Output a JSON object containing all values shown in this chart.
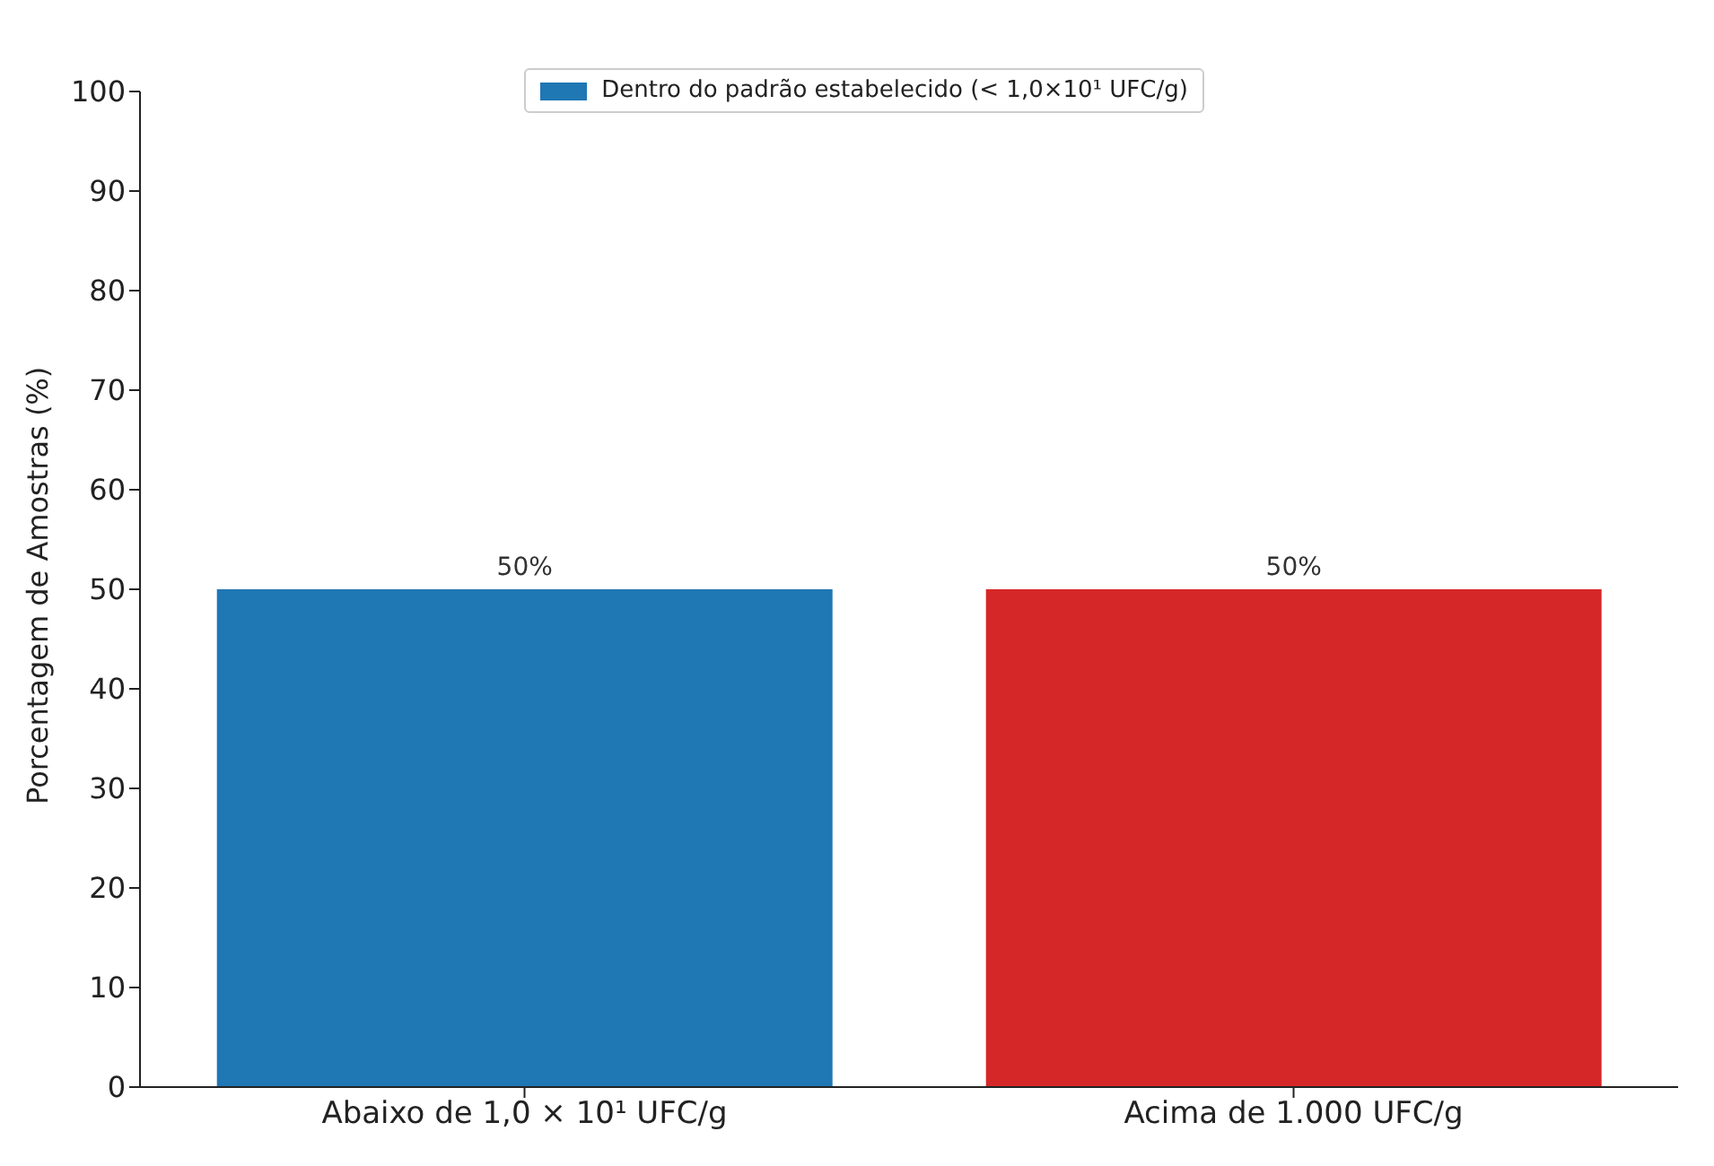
{
  "chart_data": {
    "type": "bar",
    "ylabel": "Porcentagem de Amostras (%)",
    "categories": [
      "Abaixo de 1,0 × 10¹ UFC/g",
      "Acima de 1.000 UFC/g"
    ],
    "series": [
      {
        "name": "Dentro do padrão estabelecido (< 1,0×10¹ UFC/g)",
        "color": "#1f77b4",
        "colors": [
          "#1f77b4",
          "#d62728"
        ],
        "values": [
          50,
          50
        ],
        "value_labels": [
          "50%",
          "50%"
        ]
      }
    ],
    "ylim": [
      0,
      100
    ],
    "yticks": [
      0,
      10,
      20,
      30,
      40,
      50,
      60,
      70,
      80,
      90,
      100
    ],
    "grid": false,
    "legend": "top"
  }
}
